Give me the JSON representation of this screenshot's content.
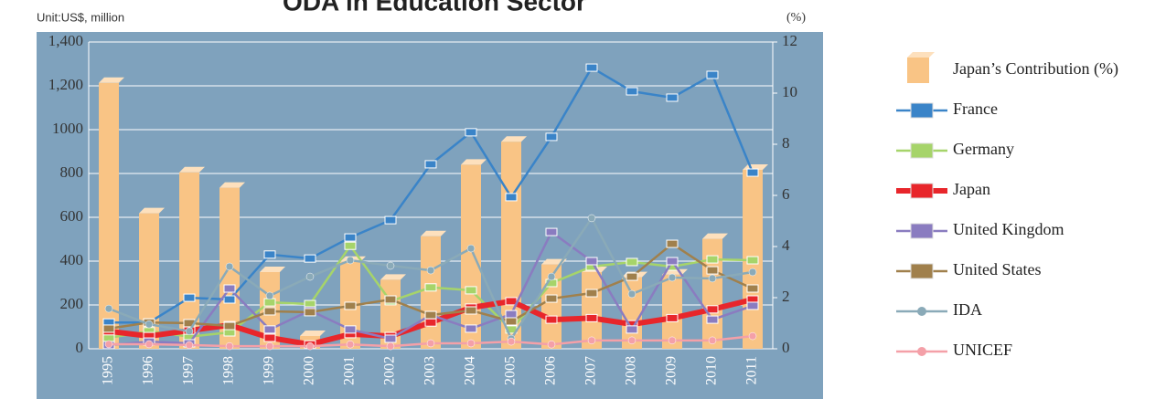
{
  "chart_data": {
    "type": "bar-line",
    "title": "ODA in Education Sector",
    "y_axis_label": "Unit:US$, million",
    "y2_axis_label": "(%)",
    "categories": [
      "1995",
      "1996",
      "1997",
      "1998",
      "1999",
      "2000",
      "2001",
      "2002",
      "2003",
      "2004",
      "2005",
      "2006",
      "2007",
      "2008",
      "2009",
      "2010",
      "2011"
    ],
    "ylim": [
      0,
      1400
    ],
    "yticks": [
      0,
      200,
      400,
      600,
      800,
      1000,
      {
        "value": 1200,
        "label": "1,200"
      },
      {
        "value": 1400,
        "label": "1,400"
      }
    ],
    "y2lim": [
      0,
      12
    ],
    "y2ticks": [
      0,
      2,
      4,
      6,
      8,
      10,
      12
    ],
    "grid": true,
    "legend": "right",
    "series": [
      {
        "name": "Japan’s Contribution (%)",
        "kind": "bar",
        "axis": "y2",
        "color": "#f9c485",
        "values": [
          10.4,
          5.3,
          6.9,
          6.3,
          3.0,
          0.5,
          3.4,
          2.7,
          4.4,
          7.2,
          8.1,
          3.3,
          3.0,
          2.8,
          2.9,
          4.3,
          7.0
        ]
      },
      {
        "name": "France",
        "kind": "line",
        "color": "#3a84c8",
        "values": [
          120,
          120,
          233,
          225,
          430,
          412,
          508,
          587,
          842,
          988,
          692,
          967,
          1283,
          1175,
          1146,
          1250,
          804
        ]
      },
      {
        "name": "Germany",
        "kind": "line",
        "color": "#a6d46a",
        "values": [
          50,
          80,
          55,
          75,
          212,
          204,
          470,
          217,
          280,
          267,
          88,
          300,
          375,
          396,
          375,
          408,
          404
        ]
      },
      {
        "name": "Japan",
        "kind": "line",
        "color": "#e8262b",
        "values": [
          80,
          58,
          83,
          108,
          50,
          20,
          67,
          58,
          120,
          188,
          217,
          133,
          140,
          112,
          140,
          180,
          225
        ]
      },
      {
        "name": "United Kingdom",
        "kind": "line",
        "color": "#8a7cc0",
        "values": [
          17,
          33,
          25,
          275,
          88,
          175,
          88,
          46,
          154,
          92,
          158,
          533,
          400,
          88,
          400,
          133,
          196
        ]
      },
      {
        "name": "United States",
        "kind": "line",
        "color": "#a0804c",
        "values": [
          92,
          120,
          117,
          104,
          171,
          167,
          196,
          225,
          154,
          175,
          125,
          229,
          254,
          329,
          479,
          358,
          275
        ]
      },
      {
        "name": "IDA",
        "kind": "line",
        "color": "#8aaab8",
        "values": [
          183,
          112,
          80,
          375,
          242,
          329,
          404,
          379,
          358,
          458,
          46,
          329,
          596,
          250,
          325,
          321,
          350
        ]
      },
      {
        "name": "UNICEF",
        "kind": "line",
        "color": "#f4a0a8",
        "values": [
          21,
          21,
          17,
          12,
          12,
          12,
          20,
          12,
          25,
          25,
          33,
          20,
          38,
          38,
          38,
          38,
          58
        ]
      }
    ]
  }
}
